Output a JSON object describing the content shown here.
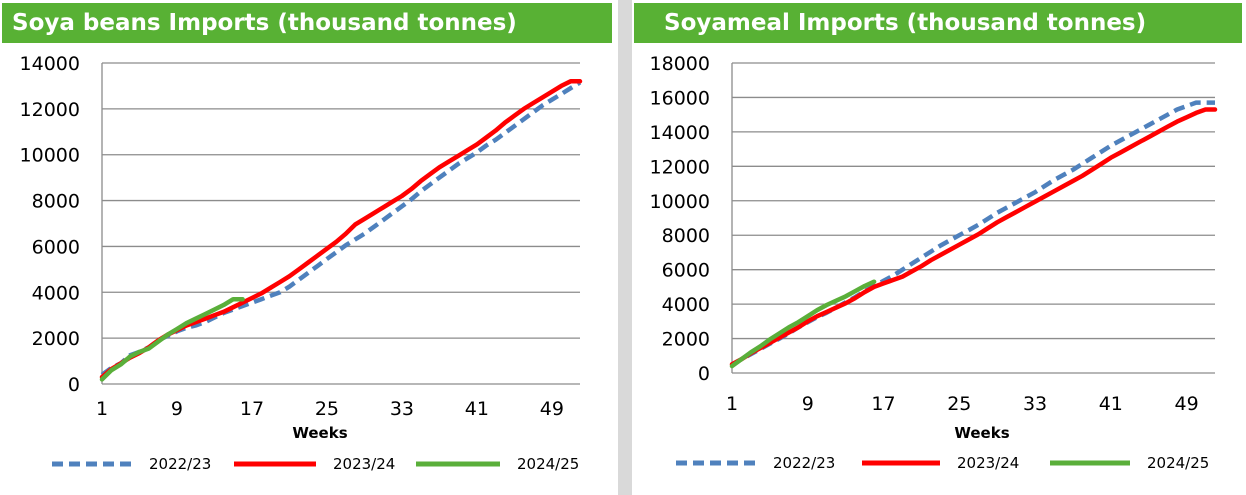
{
  "colors": {
    "title_bg": "#58b134",
    "s2022": "#4f81bd",
    "s2023": "#ff0000",
    "s2024": "#5aaf3a",
    "grid": "#8c8c8c"
  },
  "chart_data": [
    {
      "type": "line",
      "title": "Soya beans Imports (thousand tonnes)",
      "xlabel": "Weeks",
      "ylabel": "",
      "xlim": [
        1,
        52
      ],
      "ylim": [
        0,
        14000
      ],
      "x_ticks": [
        1,
        9,
        17,
        25,
        33,
        41,
        49
      ],
      "y_ticks": [
        0,
        2000,
        4000,
        6000,
        8000,
        10000,
        12000,
        14000
      ],
      "grid": true,
      "legend_position": "bottom",
      "series": [
        {
          "name": "2022/23",
          "style": "dashed",
          "points": [
            [
              1,
              400
            ],
            [
              2,
              700
            ],
            [
              3,
              900
            ],
            [
              4,
              1250
            ],
            [
              5,
              1400
            ],
            [
              6,
              1600
            ],
            [
              7,
              1900
            ],
            [
              8,
              2100
            ],
            [
              9,
              2300
            ],
            [
              10,
              2450
            ],
            [
              11,
              2550
            ],
            [
              12,
              2700
            ],
            [
              13,
              2900
            ],
            [
              14,
              3100
            ],
            [
              15,
              3250
            ],
            [
              16,
              3400
            ],
            [
              17,
              3550
            ],
            [
              18,
              3700
            ],
            [
              19,
              3850
            ],
            [
              20,
              4000
            ],
            [
              21,
              4250
            ],
            [
              22,
              4550
            ],
            [
              23,
              4850
            ],
            [
              24,
              5150
            ],
            [
              25,
              5450
            ],
            [
              26,
              5750
            ],
            [
              27,
              6050
            ],
            [
              28,
              6300
            ],
            [
              29,
              6550
            ],
            [
              30,
              6850
            ],
            [
              31,
              7150
            ],
            [
              32,
              7450
            ],
            [
              33,
              7750
            ],
            [
              34,
              8050
            ],
            [
              35,
              8400
            ],
            [
              36,
              8700
            ],
            [
              37,
              9000
            ],
            [
              38,
              9300
            ],
            [
              39,
              9600
            ],
            [
              40,
              9850
            ],
            [
              41,
              10100
            ],
            [
              42,
              10400
            ],
            [
              43,
              10650
            ],
            [
              44,
              10950
            ],
            [
              45,
              11250
            ],
            [
              46,
              11550
            ],
            [
              47,
              11850
            ],
            [
              48,
              12150
            ],
            [
              49,
              12400
            ],
            [
              50,
              12650
            ],
            [
              51,
              12900
            ],
            [
              52,
              13150
            ]
          ]
        },
        {
          "name": "2023/24",
          "style": "solid",
          "points": [
            [
              1,
              300
            ],
            [
              2,
              650
            ],
            [
              3,
              900
            ],
            [
              4,
              1150
            ],
            [
              5,
              1350
            ],
            [
              6,
              1600
            ],
            [
              7,
              1900
            ],
            [
              8,
              2150
            ],
            [
              9,
              2350
            ],
            [
              10,
              2550
            ],
            [
              11,
              2700
            ],
            [
              12,
              2850
            ],
            [
              13,
              3000
            ],
            [
              14,
              3150
            ],
            [
              15,
              3350
            ],
            [
              16,
              3550
            ],
            [
              17,
              3750
            ],
            [
              18,
              3950
            ],
            [
              19,
              4200
            ],
            [
              20,
              4450
            ],
            [
              21,
              4700
            ],
            [
              22,
              5000
            ],
            [
              23,
              5300
            ],
            [
              24,
              5600
            ],
            [
              25,
              5900
            ],
            [
              26,
              6200
            ],
            [
              27,
              6550
            ],
            [
              28,
              6950
            ],
            [
              29,
              7200
            ],
            [
              30,
              7450
            ],
            [
              31,
              7700
            ],
            [
              32,
              7950
            ],
            [
              33,
              8200
            ],
            [
              34,
              8500
            ],
            [
              35,
              8850
            ],
            [
              36,
              9150
            ],
            [
              37,
              9450
            ],
            [
              38,
              9700
            ],
            [
              39,
              9950
            ],
            [
              40,
              10200
            ],
            [
              41,
              10450
            ],
            [
              42,
              10750
            ],
            [
              43,
              11050
            ],
            [
              44,
              11400
            ],
            [
              45,
              11700
            ],
            [
              46,
              12000
            ],
            [
              47,
              12250
            ],
            [
              48,
              12500
            ],
            [
              49,
              12750
            ],
            [
              50,
              13000
            ],
            [
              51,
              13200
            ],
            [
              52,
              13200
            ]
          ]
        },
        {
          "name": "2024/25",
          "style": "solid",
          "points": [
            [
              1,
              200
            ],
            [
              2,
              600
            ],
            [
              3,
              850
            ],
            [
              4,
              1200
            ],
            [
              5,
              1400
            ],
            [
              6,
              1550
            ],
            [
              7,
              1850
            ],
            [
              8,
              2150
            ],
            [
              9,
              2400
            ],
            [
              10,
              2650
            ],
            [
              11,
              2850
            ],
            [
              12,
              3050
            ],
            [
              13,
              3250
            ],
            [
              14,
              3450
            ],
            [
              15,
              3700
            ],
            [
              16,
              3700
            ]
          ]
        }
      ]
    },
    {
      "type": "line",
      "title": "Soyameal Imports (thousand tonnes)",
      "xlabel": "Weeks",
      "ylabel": "",
      "xlim": [
        1,
        52
      ],
      "ylim": [
        0,
        18000
      ],
      "x_ticks": [
        1,
        9,
        17,
        25,
        33,
        41,
        49
      ],
      "y_ticks": [
        0,
        2000,
        4000,
        6000,
        8000,
        10000,
        12000,
        14000,
        16000,
        18000
      ],
      "grid": true,
      "legend_position": "bottom",
      "series": [
        {
          "name": "2022/23",
          "style": "dashed",
          "points": [
            [
              1,
              500
            ],
            [
              2,
              800
            ],
            [
              3,
              1100
            ],
            [
              4,
              1400
            ],
            [
              5,
              1700
            ],
            [
              6,
              2000
            ],
            [
              7,
              2300
            ],
            [
              8,
              2650
            ],
            [
              9,
              2950
            ],
            [
              10,
              3250
            ],
            [
              11,
              3500
            ],
            [
              12,
              3800
            ],
            [
              13,
              4100
            ],
            [
              14,
              4400
            ],
            [
              15,
              4750
            ],
            [
              16,
              5050
            ],
            [
              17,
              5350
            ],
            [
              18,
              5650
            ],
            [
              19,
              6000
            ],
            [
              20,
              6350
            ],
            [
              21,
              6700
            ],
            [
              22,
              7050
            ],
            [
              23,
              7400
            ],
            [
              24,
              7700
            ],
            [
              25,
              8000
            ],
            [
              26,
              8300
            ],
            [
              27,
              8600
            ],
            [
              28,
              8950
            ],
            [
              29,
              9300
            ],
            [
              30,
              9600
            ],
            [
              31,
              9900
            ],
            [
              32,
              10200
            ],
            [
              33,
              10500
            ],
            [
              34,
              10850
            ],
            [
              35,
              11200
            ],
            [
              36,
              11500
            ],
            [
              37,
              11800
            ],
            [
              38,
              12150
            ],
            [
              39,
              12500
            ],
            [
              40,
              12850
            ],
            [
              41,
              13200
            ],
            [
              42,
              13500
            ],
            [
              43,
              13800
            ],
            [
              44,
              14100
            ],
            [
              45,
              14400
            ],
            [
              46,
              14700
            ],
            [
              47,
              15000
            ],
            [
              48,
              15300
            ],
            [
              49,
              15500
            ],
            [
              50,
              15700
            ],
            [
              51,
              15700
            ],
            [
              52,
              15700
            ]
          ]
        },
        {
          "name": "2023/24",
          "style": "solid",
          "points": [
            [
              1,
              500
            ],
            [
              2,
              800
            ],
            [
              3,
              1150
            ],
            [
              4,
              1450
            ],
            [
              5,
              1750
            ],
            [
              6,
              2050
            ],
            [
              7,
              2350
            ],
            [
              8,
              2650
            ],
            [
              9,
              3000
            ],
            [
              10,
              3300
            ],
            [
              11,
              3550
            ],
            [
              12,
              3800
            ],
            [
              13,
              4050
            ],
            [
              14,
              4350
            ],
            [
              15,
              4700
            ],
            [
              16,
              5000
            ],
            [
              17,
              5200
            ],
            [
              18,
              5400
            ],
            [
              19,
              5600
            ],
            [
              20,
              5900
            ],
            [
              21,
              6200
            ],
            [
              22,
              6550
            ],
            [
              23,
              6850
            ],
            [
              24,
              7150
            ],
            [
              25,
              7450
            ],
            [
              26,
              7750
            ],
            [
              27,
              8050
            ],
            [
              28,
              8400
            ],
            [
              29,
              8750
            ],
            [
              30,
              9050
            ],
            [
              31,
              9350
            ],
            [
              32,
              9650
            ],
            [
              33,
              9950
            ],
            [
              34,
              10250
            ],
            [
              35,
              10550
            ],
            [
              36,
              10850
            ],
            [
              37,
              11150
            ],
            [
              38,
              11450
            ],
            [
              39,
              11800
            ],
            [
              40,
              12150
            ],
            [
              41,
              12500
            ],
            [
              42,
              12800
            ],
            [
              43,
              13100
            ],
            [
              44,
              13400
            ],
            [
              45,
              13700
            ],
            [
              46,
              14000
            ],
            [
              47,
              14300
            ],
            [
              48,
              14600
            ],
            [
              49,
              14850
            ],
            [
              50,
              15100
            ],
            [
              51,
              15300
            ],
            [
              52,
              15300
            ]
          ]
        },
        {
          "name": "2024/25",
          "style": "solid",
          "points": [
            [
              1,
              400
            ],
            [
              2,
              800
            ],
            [
              3,
              1200
            ],
            [
              4,
              1550
            ],
            [
              5,
              1950
            ],
            [
              6,
              2300
            ],
            [
              7,
              2650
            ],
            [
              8,
              2950
            ],
            [
              9,
              3300
            ],
            [
              10,
              3650
            ],
            [
              11,
              3950
            ],
            [
              12,
              4200
            ],
            [
              13,
              4450
            ],
            [
              14,
              4750
            ],
            [
              15,
              5050
            ],
            [
              16,
              5300
            ]
          ]
        }
      ]
    }
  ]
}
